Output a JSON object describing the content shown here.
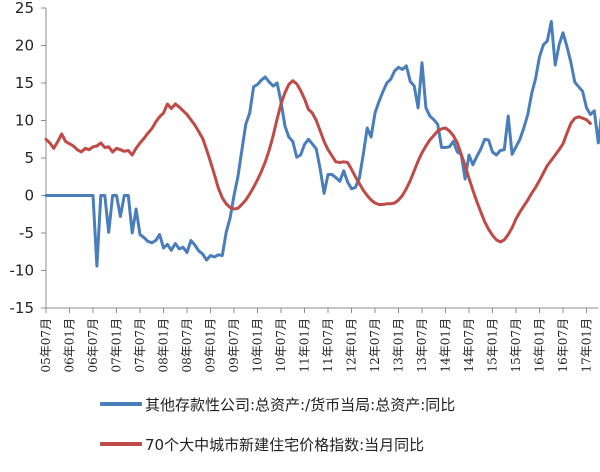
{
  "chart_data": {
    "type": "line",
    "title": "",
    "xlabel": "",
    "ylabel": "",
    "ylim": [
      -15,
      25
    ],
    "yticks": [
      25,
      20,
      15,
      10,
      5,
      0,
      -5,
      -10,
      -15
    ],
    "xtick_labels": [
      "05年07月",
      "06年01月",
      "06年07月",
      "07年01月",
      "07年07月",
      "08年01月",
      "08年07月",
      "09年01月",
      "09年07月",
      "10年01月",
      "10年07月",
      "11年01月",
      "11年07月",
      "12年01月",
      "12年07月",
      "13年01月",
      "13年07月",
      "14年01月",
      "14年07月",
      "15年01月",
      "15年07月",
      "16年01月",
      "16年07月",
      "17年01月"
    ],
    "grid": false,
    "legend_position": "bottom",
    "x_start": "2005-07",
    "x_step_months": 1,
    "series": [
      {
        "name": "其他存款性公司:总资产:/货币当局:总资产:同比",
        "color": "#4A7EBB",
        "values": [
          0,
          0,
          0,
          0,
          0,
          0,
          0,
          0,
          0,
          0,
          0,
          0,
          0,
          -9.4,
          0,
          0,
          -4.9,
          0,
          0,
          -2.8,
          0,
          0,
          -5,
          -1.8,
          -5.2,
          -5.6,
          -6.1,
          -6.3,
          -6,
          -5.2,
          -7,
          -6.5,
          -7.3,
          -6.4,
          -7.1,
          -6.9,
          -7.6,
          -6,
          -6.6,
          -7.4,
          -7.8,
          -8.6,
          -8,
          -8.2,
          -7.9,
          -8,
          -4.9,
          -3,
          0,
          2.5,
          6,
          9.5,
          11,
          14.5,
          14.8,
          15.4,
          15.8,
          15.1,
          14.6,
          15,
          12.5,
          9.3,
          7.8,
          7.2,
          5.1,
          5.4,
          6.8,
          7.5,
          6.9,
          6.2,
          3.5,
          0.3,
          2.8,
          2.8,
          2.4,
          1.9,
          3.3,
          1.8,
          0.9,
          1.1,
          2.3,
          5.5,
          9,
          7.8,
          11,
          12.5,
          13.8,
          15,
          15.5,
          16.6,
          17.1,
          16.8,
          17.3,
          15.2,
          14.6,
          11.7,
          17.7,
          11.7,
          10.6,
          10.1,
          9.5,
          6.4,
          6.4,
          6.5,
          7.2,
          5.8,
          5.5,
          2.2,
          5.4,
          4.1,
          5.2,
          6.2,
          7.5,
          7.4,
          5.8,
          5.4,
          6.0,
          6.1,
          10.6,
          5.5,
          6.5,
          7.5,
          9.0,
          10.8,
          13.6,
          15.6,
          18.5,
          20.1,
          20.6,
          23.2,
          17.4,
          20.1,
          21.7,
          19.9,
          17.8,
          15.1,
          14.5,
          13.9,
          11.7,
          10.8,
          11.3,
          7.0,
          11.5,
          11.4,
          10.6
        ]
      },
      {
        "name": "70个大中城市新建住宅价格指数:当月同比",
        "color": "#BE4B48",
        "values": [
          7.5,
          7,
          6.3,
          7.2,
          8.2,
          7.2,
          6.9,
          6.6,
          6.1,
          5.8,
          6.3,
          6.1,
          6.5,
          6.6,
          7,
          6.4,
          6.5,
          5.8,
          6.3,
          6.1,
          5.9,
          6,
          5.4,
          6.3,
          7,
          7.6,
          8.3,
          8.9,
          9.8,
          10.5,
          11,
          12.2,
          11.6,
          12.2,
          11.8,
          11.3,
          10.8,
          10.1,
          9.4,
          8.5,
          7.6,
          6.1,
          4.5,
          2.8,
          1.0,
          -0.3,
          -1.1,
          -1.6,
          -1.8,
          -1.7,
          -1.2,
          -0.6,
          0.2,
          1.1,
          2.1,
          3.2,
          4.5,
          6.1,
          8.0,
          10.2,
          12.2,
          13.7,
          14.8,
          15.3,
          14.9,
          14.0,
          12.9,
          11.5,
          11.0,
          10.0,
          8.6,
          7.2,
          6.1,
          5.3,
          4.5,
          4.4,
          4.5,
          4.4,
          3.5,
          2.5,
          1.6,
          0.7,
          0.0,
          -0.6,
          -1.0,
          -1.2,
          -1.2,
          -1.1,
          -1.1,
          -1.0,
          -0.6,
          0.0,
          0.9,
          2.0,
          3.3,
          4.6,
          5.7,
          6.6,
          7.4,
          8.0,
          8.6,
          8.9,
          9.0,
          8.6,
          8.0,
          7.0,
          5.5,
          4.0,
          2.3,
          0.7,
          -0.8,
          -2.2,
          -3.5,
          -4.5,
          -5.3,
          -5.9,
          -6.2,
          -5.9,
          -5.2,
          -4.3,
          -3.1,
          -2.2,
          -1.4,
          -0.6,
          0.3,
          1.1,
          2.0,
          3.0,
          4.0,
          4.7,
          5.4,
          6.1,
          6.9,
          8.3,
          9.6,
          10.3,
          10.5,
          10.3,
          10.1,
          9.6
        ]
      }
    ]
  },
  "legend": {
    "items": [
      {
        "label": "其他存款性公司:总资产:/货币当局:总资产:同比",
        "color": "#4A7EBB"
      },
      {
        "label": "70个大中城市新建住宅价格指数:当月同比",
        "color": "#BE4B48"
      }
    ]
  }
}
